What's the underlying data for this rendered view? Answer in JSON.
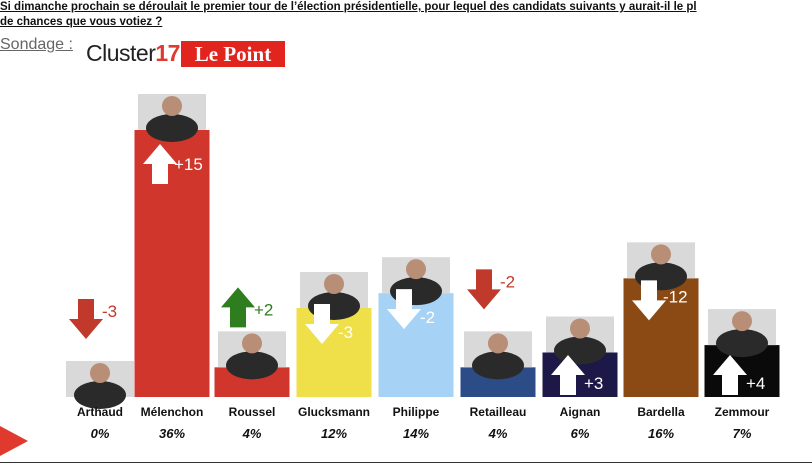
{
  "header": {
    "question_line1": "Si dimanche prochain se déroulait le premier tour de l’élection présidentielle, pour lequel des candidats suivants y aurait-il le pl",
    "question_line2": "de chances que vous votiez ?",
    "source_label": "Sondage :",
    "logo_cluster_text": "Cluster",
    "logo_cluster_num": "17",
    "logo_point": "Le Point"
  },
  "colors": {
    "arrow_up_green": "#2e7d1e",
    "arrow_down_red": "#c0392b",
    "variation_red": "#c0392b",
    "variation_green": "#2e7d1e",
    "variation_white": "#ffffff"
  },
  "chart_data": {
    "type": "bar",
    "categories": [
      "Arthaud",
      "Mélenchon",
      "Roussel",
      "Glucksmann",
      "Philippe",
      "Retailleau",
      "Aignan",
      "Bardella",
      "Zemmour"
    ],
    "values": [
      0,
      36,
      4,
      12,
      14,
      4,
      6,
      16,
      7
    ],
    "value_labels": [
      "0%",
      "36%",
      "4%",
      "12%",
      "14%",
      "4%",
      "6%",
      "16%",
      "7%"
    ],
    "changes": [
      "-3",
      "+15",
      "+2",
      "-3",
      "-2",
      "-2",
      "+3",
      "-12",
      "+4"
    ],
    "bar_colors": [
      "#ffffff",
      "#d0362b",
      "#d0362b",
      "#efe04a",
      "#a6d3f5",
      "#2b4c86",
      "#1c1847",
      "#8b4a14",
      "#0a0a0a"
    ],
    "ylim": [
      0,
      36
    ],
    "title": "",
    "xlabel": "",
    "ylabel": ""
  }
}
